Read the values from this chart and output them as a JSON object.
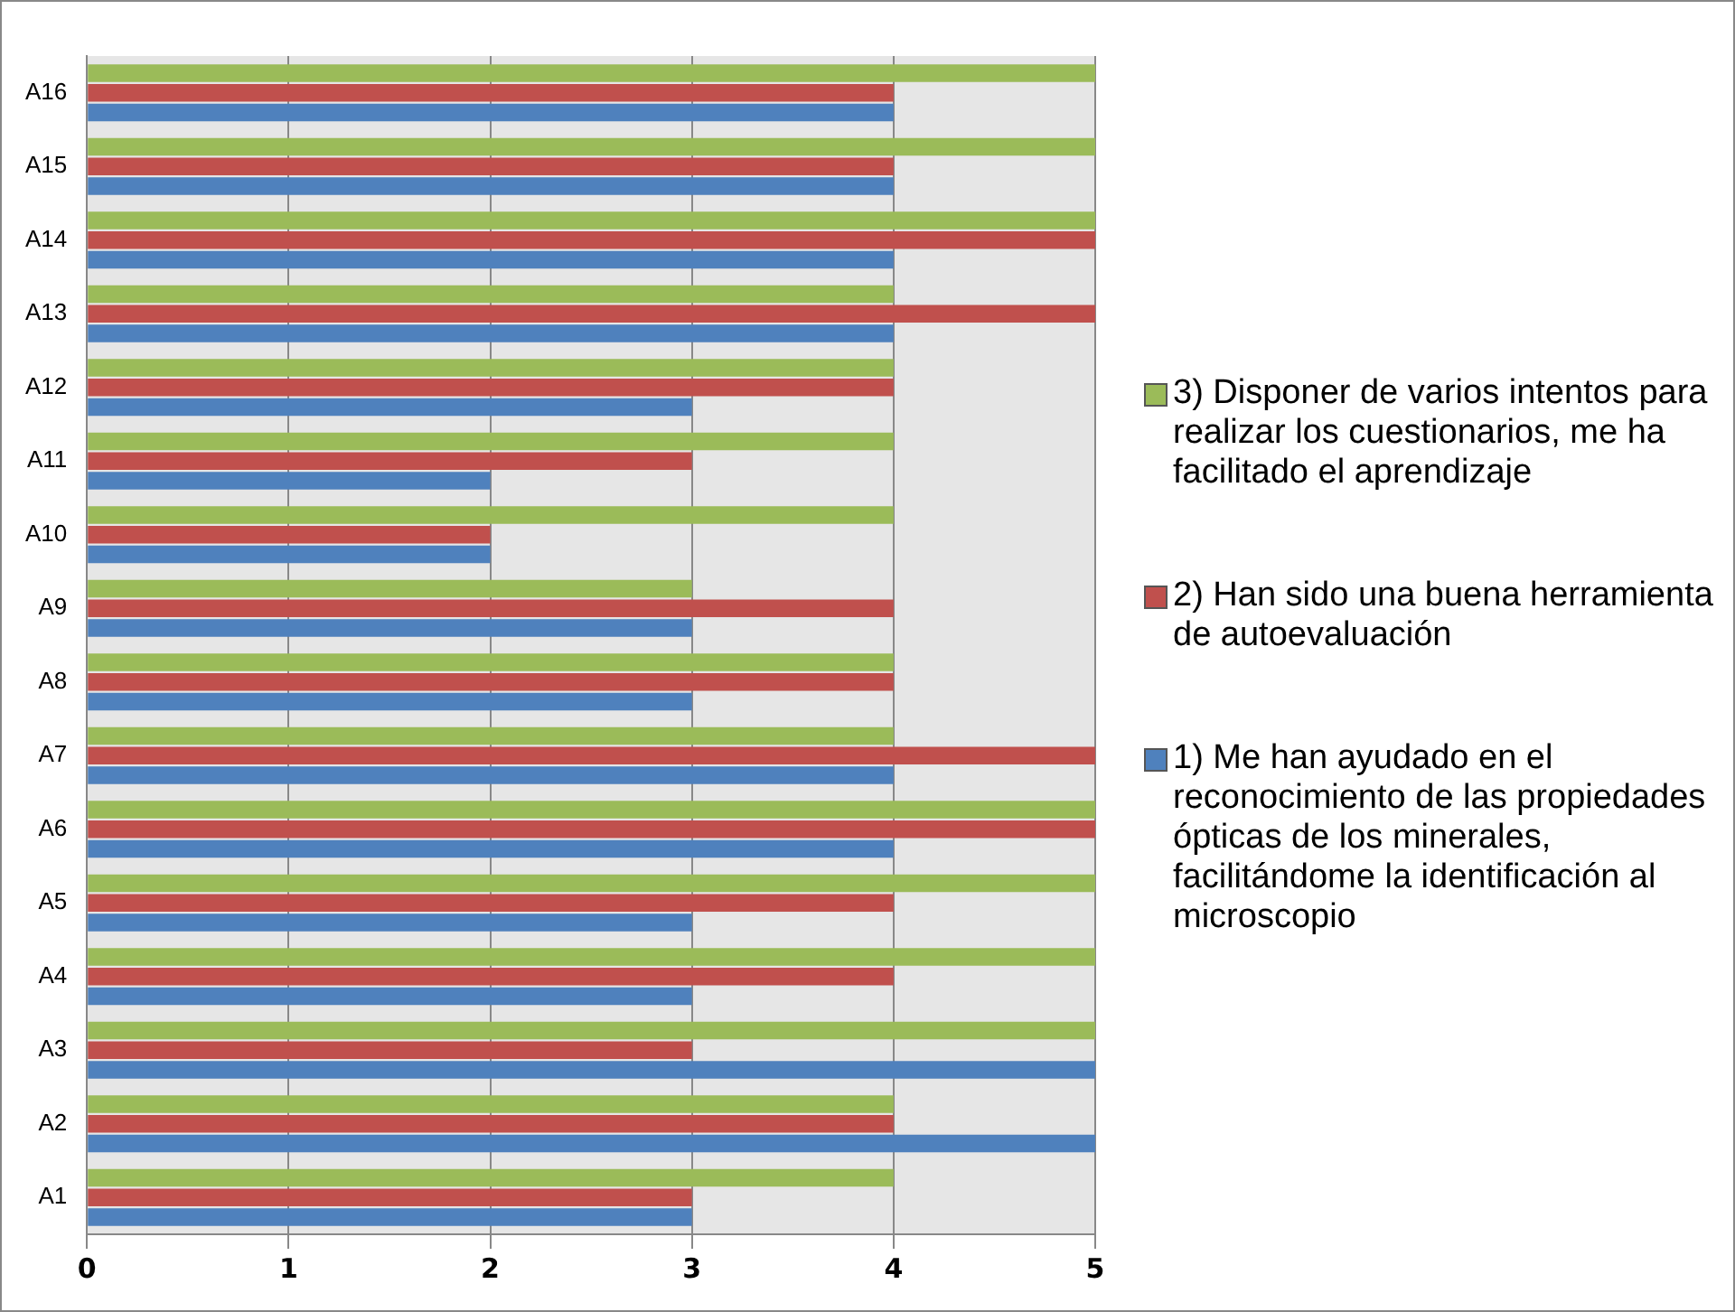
{
  "chart_data": {
    "type": "bar",
    "orientation": "horizontal",
    "categories": [
      "A16",
      "A15",
      "A14",
      "A13",
      "A12",
      "A11",
      "A10",
      "A9",
      "A8",
      "A7",
      "A6",
      "A5",
      "A4",
      "A3",
      "A2",
      "A1"
    ],
    "series": [
      {
        "name": "3) Disponer de varios intentos para realizar los cuestionarios, me ha facilitado el aprendizaje",
        "color": "#9bbb59",
        "values": [
          5,
          5,
          5,
          4,
          4,
          4,
          4,
          3,
          4,
          4,
          5,
          5,
          5,
          5,
          4,
          4
        ]
      },
      {
        "name": "2) Han sido una buena herramienta de autoevaluación",
        "color": "#c0504d",
        "values": [
          4,
          4,
          5,
          5,
          4,
          3,
          2,
          4,
          4,
          5,
          5,
          4,
          4,
          3,
          4,
          3
        ]
      },
      {
        "name": "1) Me han ayudado en el reconocimiento de las propiedades ópticas de los minerales, facilitándome la identificación al microscopio",
        "color": "#4f81bd",
        "values": [
          4,
          4,
          4,
          4,
          3,
          2,
          2,
          3,
          3,
          4,
          4,
          3,
          3,
          5,
          5,
          3
        ]
      }
    ],
    "xlim": [
      0,
      5
    ],
    "xticks": [
      0,
      1,
      2,
      3,
      4,
      5
    ],
    "grid": "x",
    "legend": "right"
  }
}
